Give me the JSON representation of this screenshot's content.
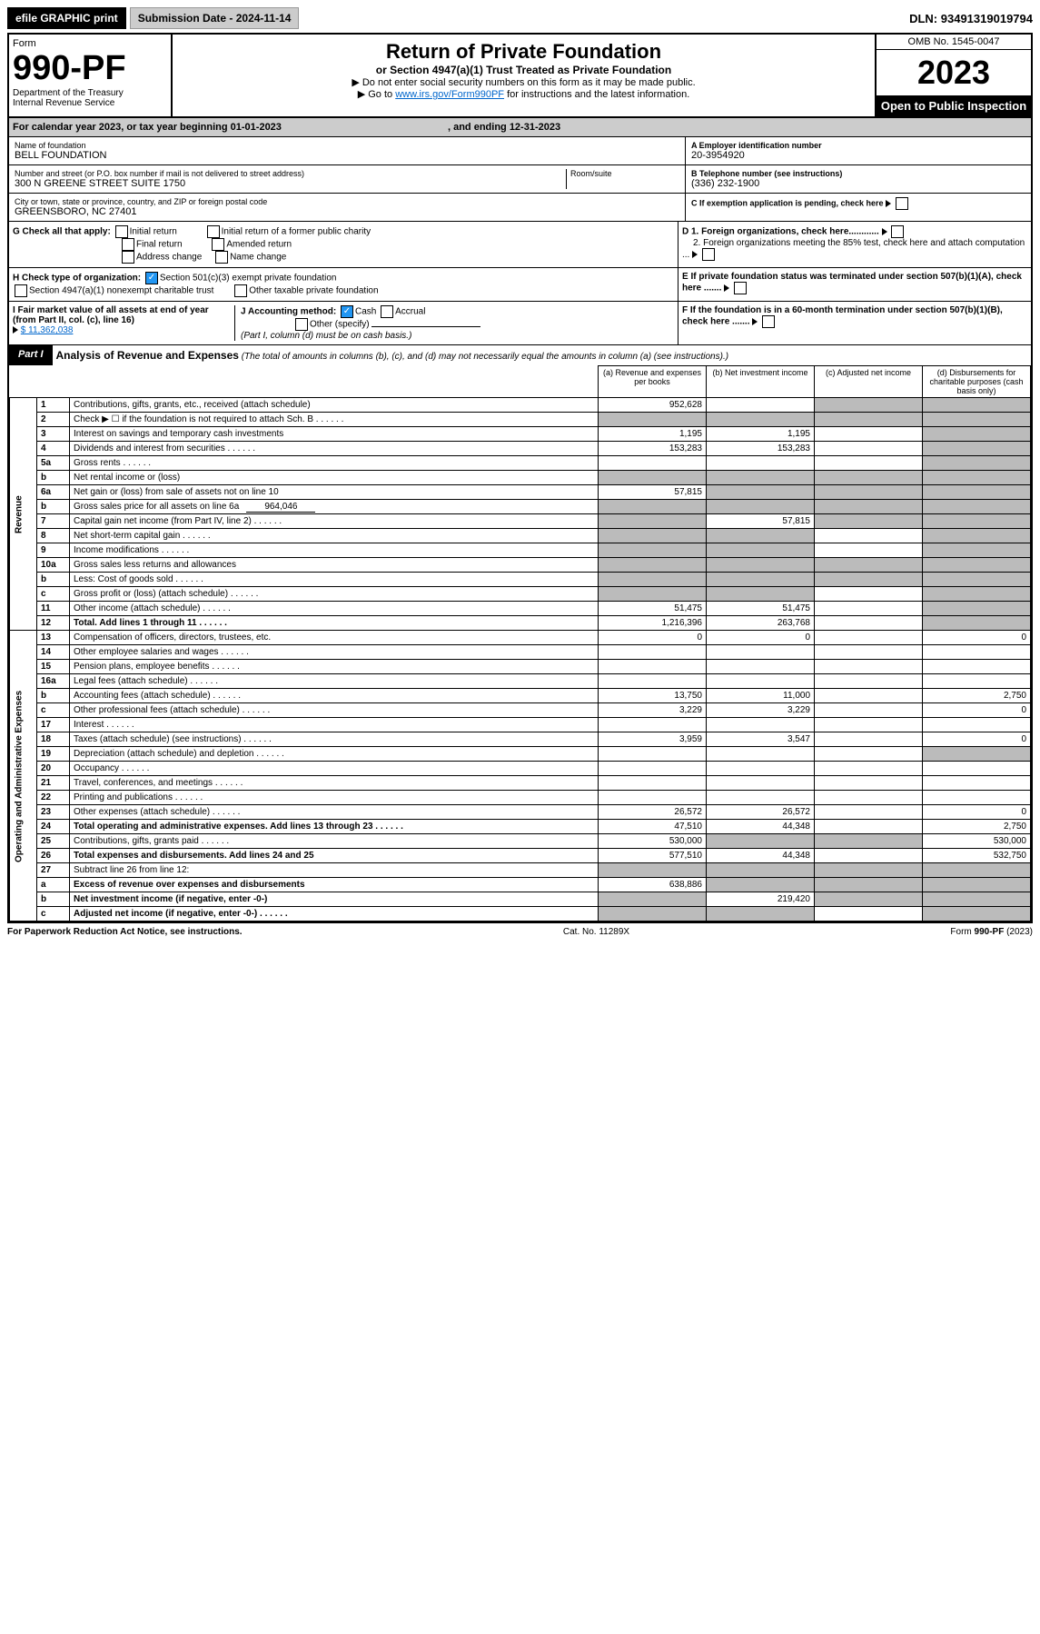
{
  "topbar": {
    "efile": "efile GRAPHIC print",
    "subdate_lbl": "Submission Date - ",
    "subdate": "2024-11-14",
    "dln_lbl": "DLN: ",
    "dln": "93491319019794"
  },
  "header": {
    "form_word": "Form",
    "form_no": "990-PF",
    "dept": "Department of the Treasury",
    "irs": "Internal Revenue Service",
    "title": "Return of Private Foundation",
    "subtitle": "or Section 4947(a)(1) Trust Treated as Private Foundation",
    "instr1": "▶ Do not enter social security numbers on this form as it may be made public.",
    "instr2": "▶ Go to ",
    "instr2_link": "www.irs.gov/Form990PF",
    "instr2_tail": " for instructions and the latest information.",
    "omb": "OMB No. 1545-0047",
    "year": "2023",
    "open": "Open to Public Inspection"
  },
  "calyear": {
    "line": "For calendar year 2023, or tax year beginning 01-01-2023",
    "mid": ", and ending 12-31-2023"
  },
  "entity": {
    "name_lbl": "Name of foundation",
    "name": "BELL FOUNDATION",
    "addr_lbl": "Number and street (or P.O. box number if mail is not delivered to street address)",
    "addr": "300 N GREENE STREET SUITE 1750",
    "room_lbl": "Room/suite",
    "city_lbl": "City or town, state or province, country, and ZIP or foreign postal code",
    "city": "GREENSBORO, NC  27401",
    "a_lbl": "A Employer identification number",
    "ein": "20-3954920",
    "b_lbl": "B Telephone number (see instructions)",
    "phone": "(336) 232-1900",
    "c_lbl": "C If exemption application is pending, check here"
  },
  "checks": {
    "g_lbl": "G Check all that apply:",
    "g1": "Initial return",
    "g2": "Initial return of a former public charity",
    "g3": "Final return",
    "g4": "Amended return",
    "g5": "Address change",
    "g6": "Name change",
    "h_lbl": "H Check type of organization:",
    "h1": "Section 501(c)(3) exempt private foundation",
    "h2": "Section 4947(a)(1) nonexempt charitable trust",
    "h3": "Other taxable private foundation",
    "i_lbl": "I Fair market value of all assets at end of year (from Part II, col. (c), line 16)",
    "i_val": "$  11,362,038",
    "j_lbl": "J Accounting method:",
    "j1": "Cash",
    "j2": "Accrual",
    "j3": "Other (specify)",
    "j_note": "(Part I, column (d) must be on cash basis.)",
    "d1": "D 1. Foreign organizations, check here............",
    "d2": "2. Foreign organizations meeting the 85% test, check here and attach computation ...",
    "e": "E  If private foundation status was terminated under section 507(b)(1)(A), check here .......",
    "f": "F  If the foundation is in a 60-month termination under section 507(b)(1)(B), check here ......."
  },
  "part1": {
    "tag": "Part I",
    "title": "Analysis of Revenue and Expenses",
    "note": "(The total of amounts in columns (b), (c), and (d) may not necessarily equal the amounts in column (a) (see instructions).)",
    "colA": "(a)  Revenue and expenses per books",
    "colB": "(b)  Net investment income",
    "colC": "(c)  Adjusted net income",
    "colD": "(d)  Disbursements for charitable purposes (cash basis only)"
  },
  "sides": {
    "rev": "Revenue",
    "exp": "Operating and Administrative Expenses"
  },
  "rows": [
    {
      "n": "1",
      "d": "Contributions, gifts, grants, etc., received (attach schedule)",
      "a": "952,628",
      "b": "",
      "c": "shade",
      "dcol": "shade"
    },
    {
      "n": "2",
      "d": "Check ▶ ☐ if the foundation is not required to attach Sch. B",
      "a": "shade",
      "b": "shade",
      "c": "shade",
      "dcol": "shade",
      "dots": true
    },
    {
      "n": "3",
      "d": "Interest on savings and temporary cash investments",
      "a": "1,195",
      "b": "1,195",
      "c": "",
      "dcol": "shade"
    },
    {
      "n": "4",
      "d": "Dividends and interest from securities",
      "a": "153,283",
      "b": "153,283",
      "c": "",
      "dcol": "shade",
      "dots": true
    },
    {
      "n": "5a",
      "d": "Gross rents",
      "a": "",
      "b": "",
      "c": "",
      "dcol": "shade",
      "dots": true
    },
    {
      "n": "b",
      "d": "Net rental income or (loss)",
      "a": "shade",
      "b": "shade",
      "c": "shade",
      "dcol": "shade"
    },
    {
      "n": "6a",
      "d": "Net gain or (loss) from sale of assets not on line 10",
      "a": "57,815",
      "b": "shade",
      "c": "shade",
      "dcol": "shade"
    },
    {
      "n": "b",
      "d": "Gross sales price for all assets on line 6a",
      "inline": "964,046",
      "a": "shade",
      "b": "shade",
      "c": "shade",
      "dcol": "shade"
    },
    {
      "n": "7",
      "d": "Capital gain net income (from Part IV, line 2)",
      "a": "shade",
      "b": "57,815",
      "c": "shade",
      "dcol": "shade",
      "dots": true
    },
    {
      "n": "8",
      "d": "Net short-term capital gain",
      "a": "shade",
      "b": "shade",
      "c": "",
      "dcol": "shade",
      "dots": true
    },
    {
      "n": "9",
      "d": "Income modifications",
      "a": "shade",
      "b": "shade",
      "c": "",
      "dcol": "shade",
      "dots": true
    },
    {
      "n": "10a",
      "d": "Gross sales less returns and allowances",
      "a": "shade",
      "b": "shade",
      "c": "shade",
      "dcol": "shade"
    },
    {
      "n": "b",
      "d": "Less: Cost of goods sold",
      "a": "shade",
      "b": "shade",
      "c": "shade",
      "dcol": "shade",
      "dots": true
    },
    {
      "n": "c",
      "d": "Gross profit or (loss) (attach schedule)",
      "a": "shade",
      "b": "shade",
      "c": "",
      "dcol": "shade",
      "dots": true
    },
    {
      "n": "11",
      "d": "Other income (attach schedule)",
      "a": "51,475",
      "b": "51,475",
      "c": "",
      "dcol": "shade",
      "dots": true
    },
    {
      "n": "12",
      "d": "Total. Add lines 1 through 11",
      "bold": true,
      "a": "1,216,396",
      "b": "263,768",
      "c": "",
      "dcol": "shade",
      "dots": true
    },
    {
      "n": "13",
      "d": "Compensation of officers, directors, trustees, etc.",
      "a": "0",
      "b": "0",
      "c": "",
      "dcol": "0"
    },
    {
      "n": "14",
      "d": "Other employee salaries and wages",
      "a": "",
      "b": "",
      "c": "",
      "dcol": "",
      "dots": true
    },
    {
      "n": "15",
      "d": "Pension plans, employee benefits",
      "a": "",
      "b": "",
      "c": "",
      "dcol": "",
      "dots": true
    },
    {
      "n": "16a",
      "d": "Legal fees (attach schedule)",
      "a": "",
      "b": "",
      "c": "",
      "dcol": "",
      "dots": true
    },
    {
      "n": "b",
      "d": "Accounting fees (attach schedule)",
      "a": "13,750",
      "b": "11,000",
      "c": "",
      "dcol": "2,750",
      "dots": true
    },
    {
      "n": "c",
      "d": "Other professional fees (attach schedule)",
      "a": "3,229",
      "b": "3,229",
      "c": "",
      "dcol": "0",
      "dots": true
    },
    {
      "n": "17",
      "d": "Interest",
      "a": "",
      "b": "",
      "c": "",
      "dcol": "",
      "dots": true
    },
    {
      "n": "18",
      "d": "Taxes (attach schedule) (see instructions)",
      "a": "3,959",
      "b": "3,547",
      "c": "",
      "dcol": "0",
      "dots": true
    },
    {
      "n": "19",
      "d": "Depreciation (attach schedule) and depletion",
      "a": "",
      "b": "",
      "c": "",
      "dcol": "shade",
      "dots": true
    },
    {
      "n": "20",
      "d": "Occupancy",
      "a": "",
      "b": "",
      "c": "",
      "dcol": "",
      "dots": true
    },
    {
      "n": "21",
      "d": "Travel, conferences, and meetings",
      "a": "",
      "b": "",
      "c": "",
      "dcol": "",
      "dots": true
    },
    {
      "n": "22",
      "d": "Printing and publications",
      "a": "",
      "b": "",
      "c": "",
      "dcol": "",
      "dots": true
    },
    {
      "n": "23",
      "d": "Other expenses (attach schedule)",
      "a": "26,572",
      "b": "26,572",
      "c": "",
      "dcol": "0",
      "dots": true
    },
    {
      "n": "24",
      "d": "Total operating and administrative expenses. Add lines 13 through 23",
      "bold": true,
      "a": "47,510",
      "b": "44,348",
      "c": "",
      "dcol": "2,750",
      "dots": true
    },
    {
      "n": "25",
      "d": "Contributions, gifts, grants paid",
      "a": "530,000",
      "b": "shade",
      "c": "shade",
      "dcol": "530,000",
      "dots": true
    },
    {
      "n": "26",
      "d": "Total expenses and disbursements. Add lines 24 and 25",
      "bold": true,
      "a": "577,510",
      "b": "44,348",
      "c": "",
      "dcol": "532,750"
    },
    {
      "n": "27",
      "d": "Subtract line 26 from line 12:",
      "a": "shade",
      "b": "shade",
      "c": "shade",
      "dcol": "shade"
    },
    {
      "n": "a",
      "d": "Excess of revenue over expenses and disbursements",
      "bold": true,
      "a": "638,886",
      "b": "shade",
      "c": "shade",
      "dcol": "shade"
    },
    {
      "n": "b",
      "d": "Net investment income (if negative, enter -0-)",
      "bold": true,
      "a": "shade",
      "b": "219,420",
      "c": "shade",
      "dcol": "shade"
    },
    {
      "n": "c",
      "d": "Adjusted net income (if negative, enter -0-)",
      "bold": true,
      "a": "shade",
      "b": "shade",
      "c": "",
      "dcol": "shade",
      "dots": true
    }
  ],
  "footer": {
    "left": "For Paperwork Reduction Act Notice, see instructions.",
    "mid": "Cat. No. 11289X",
    "right": "Form 990-PF (2023)"
  },
  "colors": {
    "black": "#000000",
    "gray": "#cccccc",
    "shade": "#bbbbbb",
    "link": "#0066cc",
    "check": "#2196f3"
  }
}
